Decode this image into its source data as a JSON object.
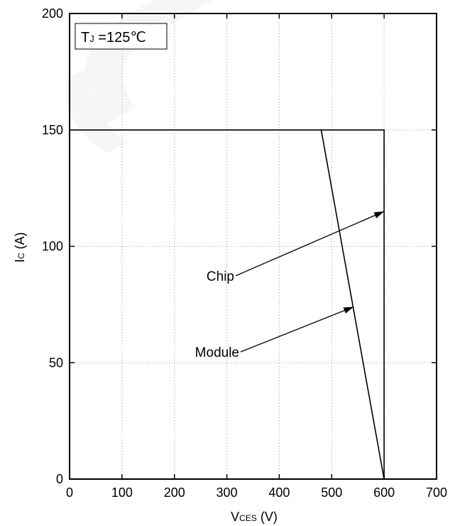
{
  "chart_data": {
    "type": "line",
    "title": "",
    "xlabel": {
      "main": "V",
      "sub": "CES",
      "unit": " (V)"
    },
    "ylabel": {
      "main": "I",
      "sub": "C",
      "unit": " (A)"
    },
    "xlim": [
      0,
      700
    ],
    "ylim": [
      0,
      200
    ],
    "xticks": [
      0,
      100,
      200,
      300,
      400,
      500,
      600,
      700
    ],
    "yticks": [
      0,
      50,
      100,
      150,
      200
    ],
    "grid": true,
    "condition_box": {
      "main": "T",
      "sub": "J",
      "rest": " =125℃"
    },
    "series": [
      {
        "name": "Chip",
        "points": [
          [
            0,
            150
          ],
          [
            600,
            150
          ],
          [
            600,
            0
          ]
        ]
      },
      {
        "name": "Module",
        "points": [
          [
            480,
            150
          ],
          [
            600,
            0
          ]
        ]
      }
    ],
    "annotations": [
      {
        "text": "Chip",
        "target": [
          600,
          115
        ]
      },
      {
        "text": "Module",
        "target": [
          542,
          74
        ]
      }
    ],
    "colors": {
      "line": "#000000",
      "grid": "#999999",
      "watermark": "#f6f6f6"
    }
  }
}
